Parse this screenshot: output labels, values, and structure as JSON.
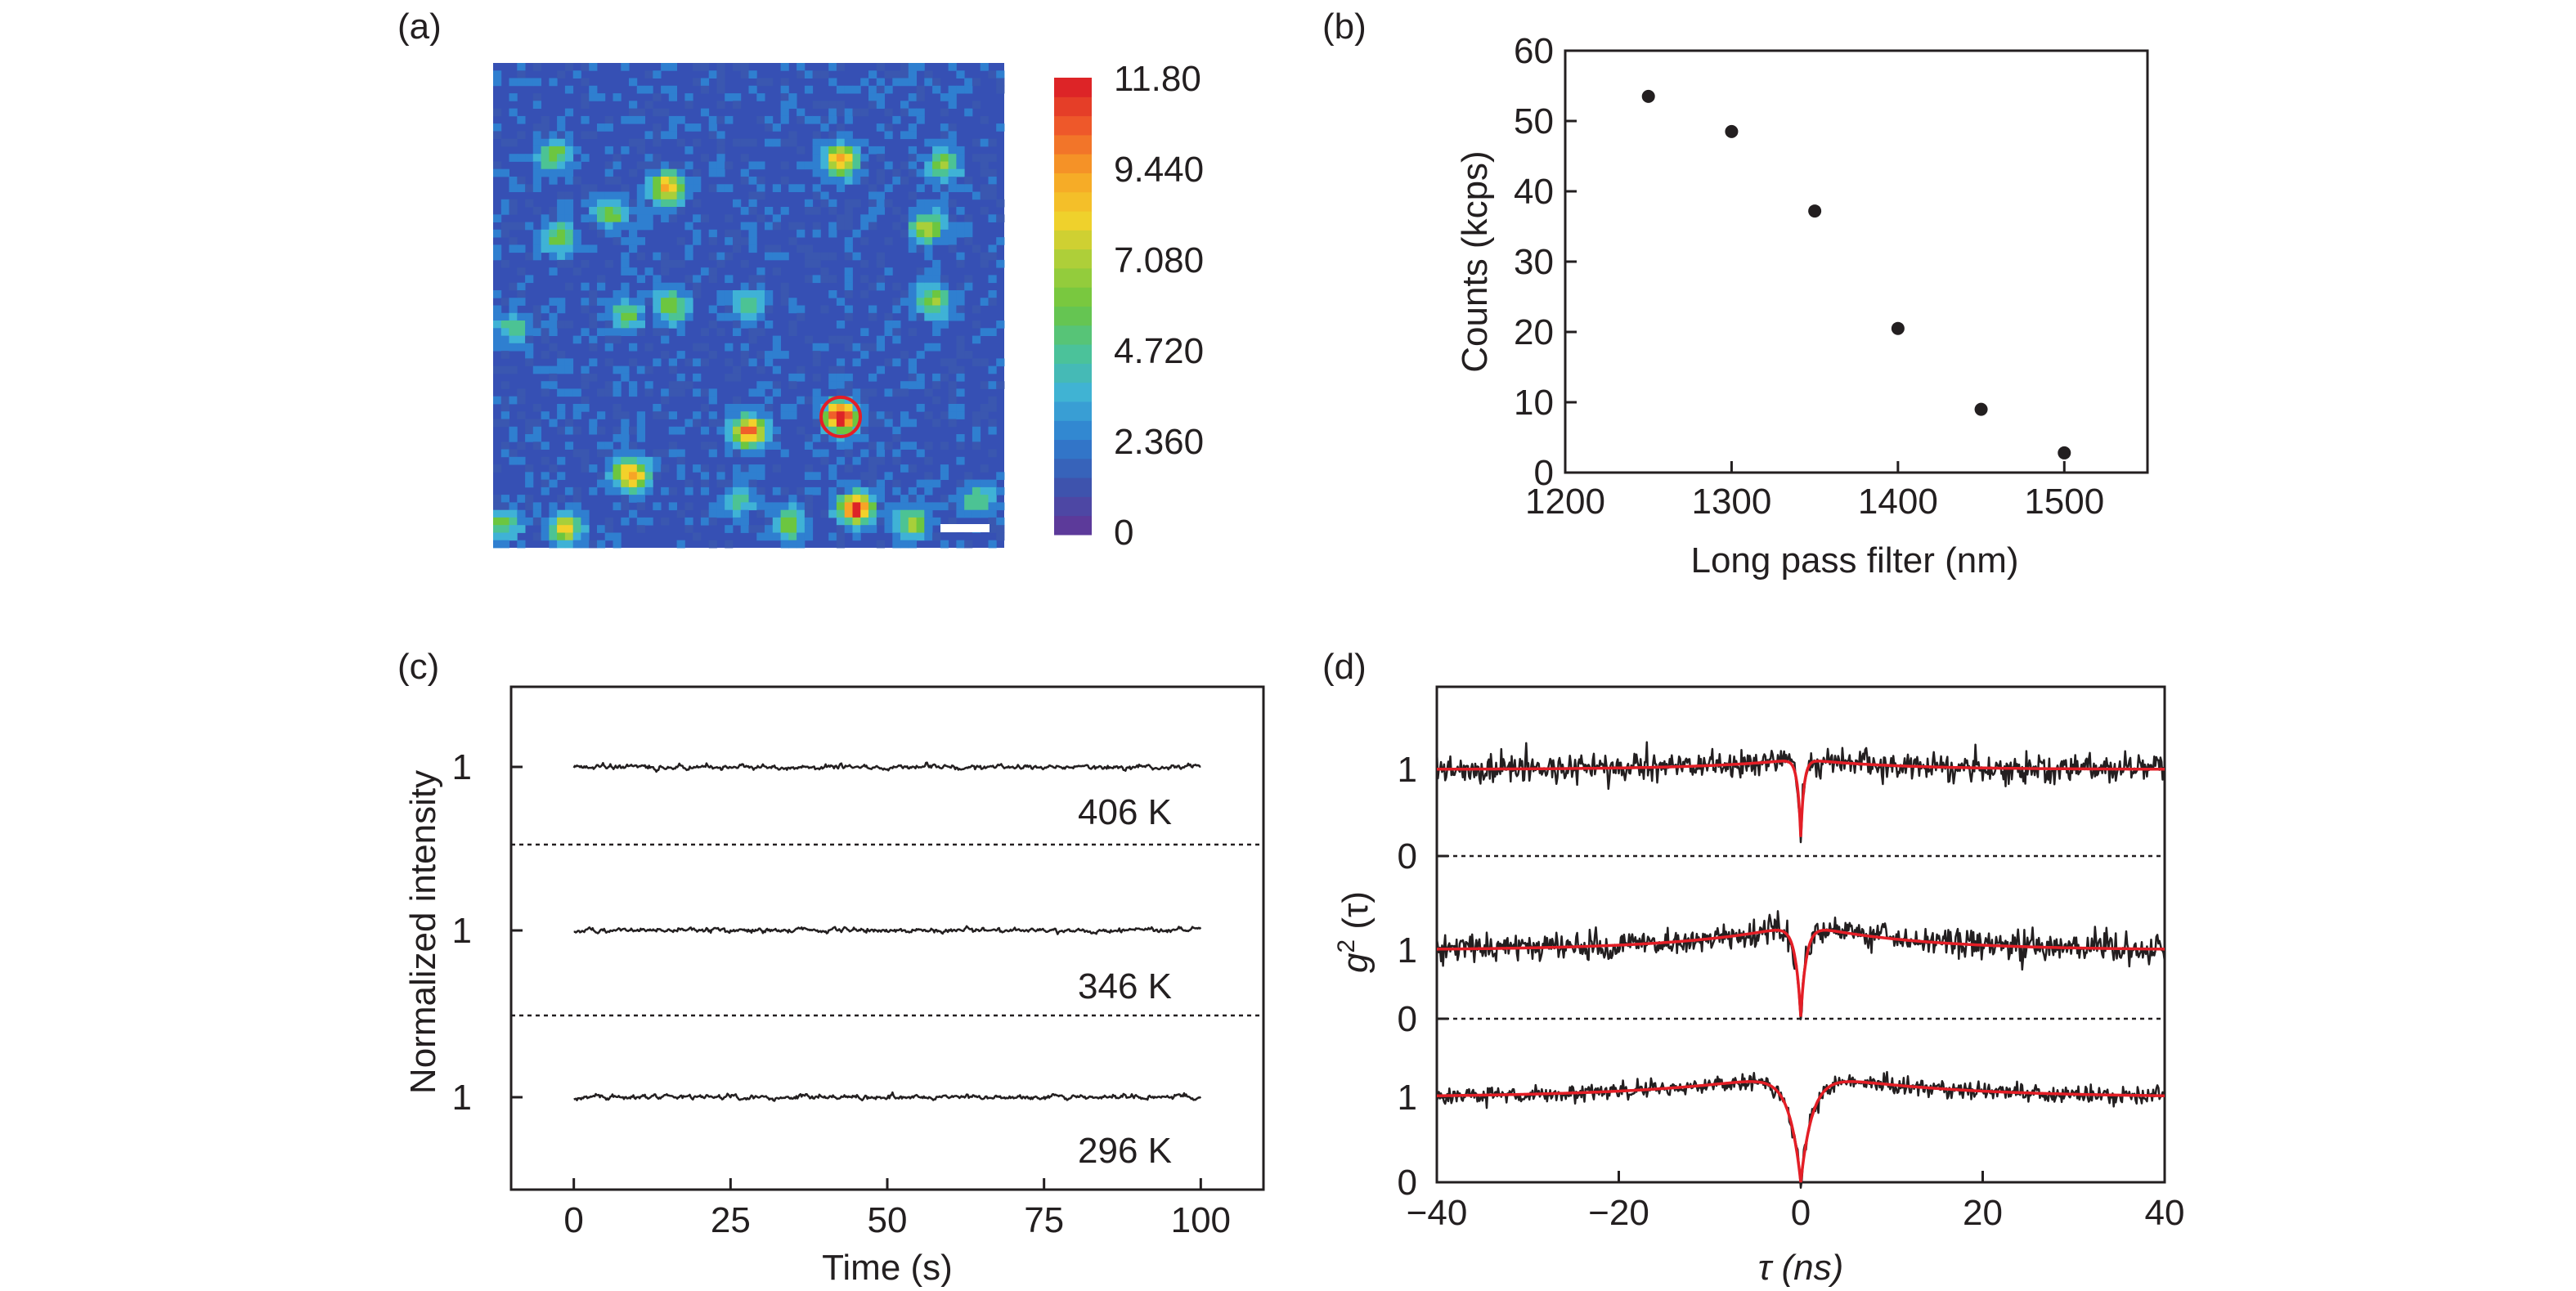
{
  "chart_data": [
    {
      "panel": "(a)",
      "type": "heatmap",
      "colorbar": {
        "ticks": [
          "11.80",
          "9.440",
          "7.080",
          "4.720",
          "2.360",
          "0"
        ],
        "range": [
          0,
          11.8
        ],
        "colors": [
          "#5c3a9a",
          "#3a57b0",
          "#2f7fd0",
          "#3fb2d6",
          "#4cc394",
          "#6cc640",
          "#a8cf3a",
          "#f2d12b",
          "#f7a426",
          "#f0602a",
          "#dd2427"
        ]
      },
      "background_color": "#3650b4",
      "spots": [
        {
          "x": 0.12,
          "y": 0.19,
          "v": 0.45
        },
        {
          "x": 0.34,
          "y": 0.26,
          "v": 0.7
        },
        {
          "x": 0.68,
          "y": 0.2,
          "v": 0.72
        },
        {
          "x": 0.88,
          "y": 0.21,
          "v": 0.45
        },
        {
          "x": 0.23,
          "y": 0.31,
          "v": 0.4
        },
        {
          "x": 0.85,
          "y": 0.34,
          "v": 0.55
        },
        {
          "x": 0.13,
          "y": 0.36,
          "v": 0.45
        },
        {
          "x": 0.35,
          "y": 0.5,
          "v": 0.45
        },
        {
          "x": 0.26,
          "y": 0.52,
          "v": 0.4
        },
        {
          "x": 0.5,
          "y": 0.5,
          "v": 0.35
        },
        {
          "x": 0.86,
          "y": 0.49,
          "v": 0.45
        },
        {
          "x": 0.04,
          "y": 0.55,
          "v": 0.35
        },
        {
          "x": 0.68,
          "y": 0.73,
          "v": 1.0
        },
        {
          "x": 0.5,
          "y": 0.76,
          "v": 0.85
        },
        {
          "x": 0.27,
          "y": 0.85,
          "v": 0.8
        },
        {
          "x": 0.71,
          "y": 0.92,
          "v": 0.95
        },
        {
          "x": 0.14,
          "y": 0.96,
          "v": 0.6
        },
        {
          "x": 0.82,
          "y": 0.95,
          "v": 0.5
        },
        {
          "x": 0.58,
          "y": 0.95,
          "v": 0.45
        },
        {
          "x": 0.95,
          "y": 0.9,
          "v": 0.35
        },
        {
          "x": 0.48,
          "y": 0.9,
          "v": 0.3
        },
        {
          "x": 0.02,
          "y": 0.95,
          "v": 0.35
        }
      ],
      "highlight_circle": {
        "x": 0.68,
        "y": 0.73
      },
      "scale_bar": true
    },
    {
      "panel": "(b)",
      "type": "scatter",
      "xlabel": "Long pass filter (nm)",
      "ylabel": "Counts (kcps)",
      "xlim": [
        1200,
        1550
      ],
      "ylim": [
        0,
        60
      ],
      "xticks": [
        1200,
        1300,
        1400,
        1500
      ],
      "yticks": [
        0,
        10,
        20,
        30,
        40,
        50,
        60
      ],
      "x": [
        1250,
        1300,
        1350,
        1400,
        1450,
        1500
      ],
      "y": [
        53.5,
        48.5,
        37.2,
        20.5,
        9.0,
        2.8
      ]
    },
    {
      "panel": "(c)",
      "type": "line",
      "xlabel": "Time (s)",
      "ylabel": "Normalized intensity",
      "xlim": [
        -10,
        110
      ],
      "xticks": [
        0,
        25,
        50,
        75,
        100
      ],
      "x_range": [
        0,
        100
      ],
      "series": [
        {
          "name": "406 K",
          "y_level": 1
        },
        {
          "name": "346 K",
          "y_level": 1
        },
        {
          "name": "296 K",
          "y_level": 1
        }
      ]
    },
    {
      "panel": "(d)",
      "type": "line",
      "xlabel": "τ (ns)",
      "ylabel_italic": "g",
      "ylabel_sup": "2",
      "ylabel_rest": " (τ)",
      "xlim": [
        -40,
        40
      ],
      "xticks": [
        -40,
        -20,
        0,
        20,
        40
      ],
      "xtick_labels": [
        "−40",
        "−20",
        "0",
        "20",
        "40"
      ],
      "ytick_labels": [
        "1",
        "0"
      ],
      "series": [
        {
          "y0": 0.22,
          "bunch": 0.12,
          "tau_antibunch": 0.35,
          "tau_bunch": 10,
          "noise": 0.16
        },
        {
          "y0": 0.03,
          "bunch": 0.38,
          "tau_antibunch": 0.6,
          "tau_bunch": 12,
          "noise": 0.2
        },
        {
          "y0": 0.0,
          "bunch": 0.3,
          "tau_antibunch": 1.3,
          "tau_bunch": 14,
          "noise": 0.1
        }
      ]
    }
  ],
  "labels": {
    "a": "(a)",
    "b": "(b)",
    "c": "(c)",
    "d": "(d)"
  }
}
